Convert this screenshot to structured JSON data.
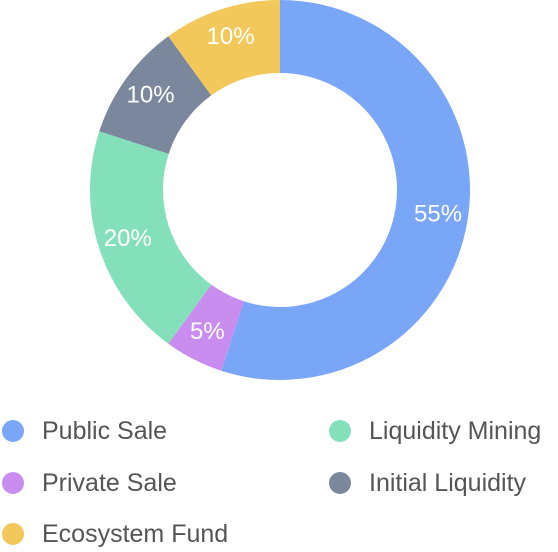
{
  "chart_data": {
    "type": "pie",
    "variant": "donut",
    "legend_position": "bottom",
    "series": [
      {
        "name": "Public Sale",
        "value": 55,
        "label": "55%",
        "color": "#7aa6f7"
      },
      {
        "name": "Private Sale",
        "value": 5,
        "label": "5%",
        "color": "#c98df0"
      },
      {
        "name": "Liquidity Mining",
        "value": 20,
        "label": "20%",
        "color": "#84dfbb"
      },
      {
        "name": "Initial Liquidity",
        "value": 10,
        "label": "10%",
        "color": "#7a879c"
      },
      {
        "name": "Ecosystem Fund",
        "value": 10,
        "label": "10%",
        "color": "#f3c85a"
      }
    ]
  }
}
